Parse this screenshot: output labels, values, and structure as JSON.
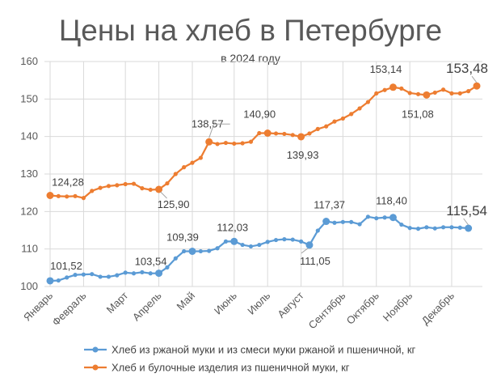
{
  "chart_data": {
    "type": "line",
    "title": "Цены на хлеб в Петербурге",
    "subtitle": "в 2024 году",
    "xlabel": "",
    "ylabel": "",
    "ylim": [
      100,
      160
    ],
    "yticks": [
      100,
      110,
      120,
      130,
      140,
      150,
      160
    ],
    "grid": true,
    "legend_position": "bottom",
    "months": [
      "Январь",
      "Февраль",
      "Март",
      "Апрель",
      "Май",
      "Июнь",
      "Июль",
      "Август",
      "Сентябрь",
      "Октябрь",
      "Ноябрь",
      "Декабрь"
    ],
    "month_tick_index": [
      0,
      4,
      9,
      13,
      17,
      22,
      26,
      30,
      35,
      39,
      43,
      48
    ],
    "series": [
      {
        "name": "Хлеб из ржаной муки и из смеси муки ржаной и пшеничной, кг",
        "color": "#5b9bd5",
        "values": [
          101.52,
          101.6,
          102.4,
          103.1,
          103.2,
          103.3,
          102.6,
          102.6,
          103.0,
          103.7,
          103.5,
          103.8,
          103.5,
          103.54,
          105.1,
          107.5,
          109.4,
          109.39,
          109.4,
          109.5,
          110.2,
          112.0,
          112.03,
          111.1,
          110.7,
          111.1,
          111.9,
          112.4,
          112.6,
          112.5,
          112.0,
          111.05,
          114.9,
          117.37,
          117.0,
          117.2,
          117.2,
          116.6,
          118.6,
          118.2,
          118.4,
          118.4,
          116.5,
          115.6,
          115.4,
          115.8,
          115.5,
          115.8,
          115.8,
          115.7,
          115.54
        ],
        "labels": [
          {
            "index": 0,
            "text": "101,52"
          },
          {
            "index": 13,
            "text": "103,54"
          },
          {
            "index": 17,
            "text": "109,39"
          },
          {
            "index": 22,
            "text": "112,03"
          },
          {
            "index": 31,
            "text": "111,05"
          },
          {
            "index": 33,
            "text": "117,37"
          },
          {
            "index": 41,
            "text": "118,40"
          },
          {
            "index": 50,
            "text": "115,54",
            "big": true
          }
        ],
        "highlight_index": [
          0,
          13,
          17,
          22,
          31,
          33,
          41,
          50
        ]
      },
      {
        "name": "Хлеб и булочные изделия из пшеничной муки, кг",
        "color": "#ed7d31",
        "values": [
          124.28,
          124.1,
          124.0,
          124.1,
          123.6,
          125.5,
          126.3,
          126.8,
          127.0,
          127.3,
          127.4,
          126.2,
          125.8,
          125.9,
          127.5,
          130.0,
          131.8,
          133.0,
          134.3,
          138.57,
          138.0,
          138.3,
          138.1,
          138.2,
          138.6,
          140.9,
          140.9,
          140.8,
          140.7,
          140.4,
          139.93,
          140.8,
          142.0,
          142.7,
          144.0,
          144.8,
          146.0,
          147.5,
          149.2,
          151.5,
          152.4,
          153.14,
          152.8,
          151.6,
          151.3,
          151.08,
          151.7,
          152.5,
          151.5,
          151.5,
          152.1,
          153.48
        ],
        "labels": [
          {
            "index": 0,
            "text": "124,28"
          },
          {
            "index": 13,
            "text": "125,90"
          },
          {
            "index": 19,
            "text": "138,57"
          },
          {
            "index": 26,
            "text": "140,90"
          },
          {
            "index": 30,
            "text": "139,93"
          },
          {
            "index": 41,
            "text": "153,14"
          },
          {
            "index": 45,
            "text": "151,08"
          },
          {
            "index": 51,
            "text": "153,48",
            "big": true
          }
        ],
        "highlight_index": [
          0,
          13,
          19,
          26,
          30,
          41,
          45,
          51
        ]
      }
    ]
  }
}
